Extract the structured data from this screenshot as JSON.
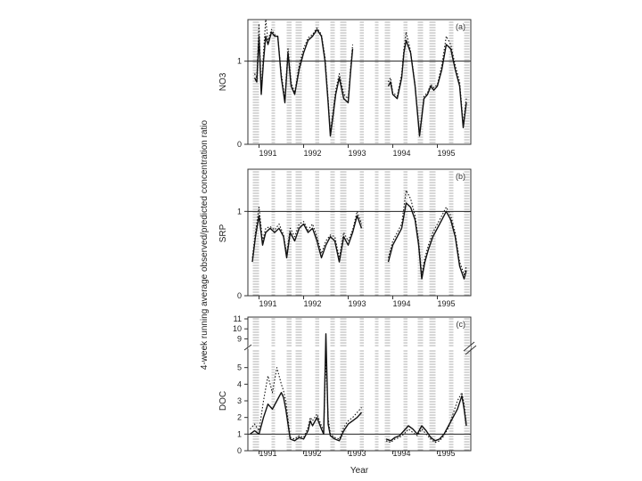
{
  "figure": {
    "ylabel": "4-week running average observed/predicted concentration ratio",
    "xlabel": "Year"
  },
  "chart_data": [
    {
      "type": "line",
      "panel": "(a)",
      "ylabel": "NO3",
      "ylim": [
        0,
        1.5
      ],
      "yticks": [
        {
          "v": 0,
          "label": "0"
        },
        {
          "v": 1,
          "label": "1"
        }
      ],
      "reference_line": 1,
      "years": [
        "1991",
        "1992",
        "1993",
        "1994",
        "1995"
      ],
      "year_x": [
        1991.2,
        1992.2,
        1993.2,
        1994.2,
        1995.2
      ],
      "xlim": [
        1990.75,
        1995.75
      ],
      "shaded_periods": [
        [
          1990.86,
          1991.0
        ],
        [
          1991.28,
          1991.36
        ],
        [
          1991.62,
          1991.73
        ],
        [
          1991.82,
          1991.96
        ],
        [
          1992.26,
          1992.35
        ],
        [
          1992.6,
          1992.7
        ],
        [
          1992.82,
          1992.96
        ],
        [
          1993.26,
          1993.35
        ],
        [
          1993.6,
          1993.68
        ],
        [
          1993.82,
          1993.94
        ],
        [
          1994.24,
          1994.33
        ],
        [
          1994.56,
          1994.68
        ],
        [
          1994.82,
          1994.96
        ],
        [
          1995.26,
          1995.36
        ],
        [
          1995.6,
          1995.72
        ]
      ],
      "series": [
        {
          "style": "solid",
          "x": [
            1990.9,
            1990.95,
            1991.0,
            1991.05,
            1991.1,
            1991.15,
            1991.2,
            1991.28,
            1991.35,
            1991.42,
            1991.5,
            1991.58,
            1991.65,
            1991.72,
            1991.8,
            1991.9,
            1992.0,
            1992.1,
            1992.2,
            1992.3,
            1992.4,
            1992.48,
            1992.55,
            1992.6,
            1992.65,
            1992.72,
            1992.8,
            1992.9,
            1993.0,
            1993.05,
            1993.1,
            null,
            1993.9,
            1993.95,
            1994.0,
            1994.1,
            1994.2,
            1994.25,
            1994.3,
            1994.4,
            1994.5,
            1994.6,
            1994.7,
            1994.78,
            1994.85,
            1994.92,
            1995.0,
            1995.1,
            1995.2,
            1995.3,
            1995.4,
            1995.5,
            1995.58,
            1995.65
          ],
          "y": [
            0.8,
            0.75,
            1.3,
            0.6,
            1.0,
            1.3,
            1.2,
            1.35,
            1.3,
            1.3,
            0.8,
            0.5,
            1.1,
            0.7,
            0.6,
            0.9,
            1.1,
            1.25,
            1.3,
            1.38,
            1.3,
            1.0,
            0.5,
            0.1,
            0.3,
            0.6,
            0.8,
            0.55,
            0.5,
            0.85,
            1.15,
            null,
            0.7,
            0.75,
            0.6,
            0.55,
            0.8,
            1.1,
            1.25,
            1.1,
            0.7,
            0.1,
            0.55,
            0.6,
            0.7,
            0.65,
            0.7,
            0.9,
            1.2,
            1.15,
            0.9,
            0.7,
            0.2,
            0.5
          ]
        },
        {
          "style": "dotted",
          "x": [
            1990.9,
            1990.95,
            1991.0,
            1991.05,
            1991.1,
            1991.15,
            1991.2,
            1991.28,
            1991.35,
            1991.42,
            1991.5,
            1991.58,
            1991.65,
            1991.72,
            1991.8,
            1991.9,
            1992.0,
            1992.1,
            1992.2,
            1992.3,
            1992.4,
            1992.48,
            1992.55,
            1992.6,
            1992.65,
            1992.72,
            1992.8,
            1992.9,
            1993.0,
            1993.05,
            1993.1,
            null,
            1993.9,
            1993.95,
            1994.0,
            1994.1,
            1994.2,
            1994.25,
            1994.3,
            1994.4,
            1994.5,
            1994.6,
            1994.7,
            1994.78,
            1994.85,
            1994.92,
            1995.0,
            1995.1,
            1995.2,
            1995.3,
            1995.4,
            1995.5,
            1995.58,
            1995.65
          ],
          "y": [
            0.85,
            0.8,
            1.45,
            0.65,
            1.1,
            1.5,
            1.25,
            1.38,
            1.32,
            1.3,
            0.85,
            0.55,
            1.15,
            0.75,
            0.62,
            0.95,
            1.15,
            1.28,
            1.32,
            1.4,
            1.32,
            1.05,
            0.55,
            0.15,
            0.35,
            0.65,
            0.85,
            0.6,
            0.55,
            0.9,
            1.2,
            null,
            0.75,
            0.8,
            0.62,
            0.58,
            0.85,
            1.15,
            1.35,
            1.12,
            0.72,
            0.12,
            0.58,
            0.62,
            0.72,
            0.68,
            0.72,
            0.95,
            1.3,
            1.2,
            0.95,
            0.75,
            0.25,
            0.55
          ]
        }
      ]
    },
    {
      "type": "line",
      "panel": "(b)",
      "ylabel": "SRP",
      "ylim": [
        0,
        1.5
      ],
      "yticks": [
        {
          "v": 0,
          "label": "0"
        },
        {
          "v": 1,
          "label": "1"
        }
      ],
      "reference_line": 1,
      "years": [
        "1991",
        "1992",
        "1993",
        "1994",
        "1995"
      ],
      "year_x": [
        1991.2,
        1992.2,
        1993.2,
        1994.2,
        1995.2
      ],
      "xlim": [
        1990.75,
        1995.75
      ],
      "shaded_periods": [
        [
          1990.86,
          1991.0
        ],
        [
          1991.28,
          1991.36
        ],
        [
          1991.62,
          1991.73
        ],
        [
          1991.82,
          1991.96
        ],
        [
          1992.26,
          1992.35
        ],
        [
          1992.6,
          1992.7
        ],
        [
          1992.82,
          1992.96
        ],
        [
          1993.26,
          1993.35
        ],
        [
          1993.6,
          1993.68
        ],
        [
          1993.82,
          1993.94
        ],
        [
          1994.24,
          1994.33
        ],
        [
          1994.56,
          1994.68
        ],
        [
          1994.82,
          1994.96
        ],
        [
          1995.26,
          1995.36
        ],
        [
          1995.6,
          1995.72
        ]
      ],
      "series": [
        {
          "style": "solid",
          "x": [
            1990.85,
            1990.92,
            1991.0,
            1991.08,
            1991.15,
            1991.25,
            1991.35,
            1991.45,
            1991.55,
            1991.62,
            1991.7,
            1991.8,
            1991.9,
            1992.0,
            1992.1,
            1992.2,
            1992.3,
            1992.4,
            1992.5,
            1992.6,
            1992.7,
            1992.8,
            1992.9,
            1993.0,
            1993.1,
            1993.2,
            1993.3,
            null,
            1993.9,
            1994.0,
            1994.1,
            1994.2,
            1994.3,
            1994.4,
            1994.5,
            1994.58,
            1994.65,
            1994.72,
            1994.8,
            1994.9,
            1995.0,
            1995.1,
            1995.2,
            1995.3,
            1995.4,
            1995.5,
            1995.6,
            1995.65
          ],
          "y": [
            0.4,
            0.7,
            0.95,
            0.6,
            0.75,
            0.8,
            0.75,
            0.8,
            0.7,
            0.45,
            0.75,
            0.65,
            0.8,
            0.85,
            0.75,
            0.8,
            0.65,
            0.45,
            0.6,
            0.7,
            0.65,
            0.4,
            0.7,
            0.6,
            0.75,
            0.95,
            0.8,
            null,
            0.4,
            0.6,
            0.7,
            0.8,
            1.1,
            1.05,
            0.9,
            0.6,
            0.2,
            0.4,
            0.55,
            0.7,
            0.8,
            0.9,
            1.0,
            0.9,
            0.7,
            0.35,
            0.2,
            0.3
          ]
        },
        {
          "style": "dotted",
          "x": [
            1990.85,
            1990.92,
            1991.0,
            1991.08,
            1991.15,
            1991.25,
            1991.35,
            1991.45,
            1991.55,
            1991.62,
            1991.7,
            1991.8,
            1991.9,
            1992.0,
            1992.1,
            1992.2,
            1992.3,
            1992.4,
            1992.5,
            1992.6,
            1992.7,
            1992.8,
            1992.9,
            1993.0,
            1993.1,
            1993.2,
            1993.3,
            null,
            1993.9,
            1994.0,
            1994.1,
            1994.2,
            1994.3,
            1994.4,
            1994.5,
            1994.58,
            1994.65,
            1994.72,
            1994.8,
            1994.9,
            1995.0,
            1995.1,
            1995.2,
            1995.3,
            1995.4,
            1995.5,
            1995.6,
            1995.65
          ],
          "y": [
            0.45,
            0.75,
            1.05,
            0.65,
            0.8,
            0.82,
            0.78,
            0.85,
            0.72,
            0.5,
            0.8,
            0.7,
            0.85,
            0.88,
            0.78,
            0.85,
            0.7,
            0.5,
            0.65,
            0.72,
            0.7,
            0.45,
            0.75,
            0.65,
            0.78,
            1.0,
            0.85,
            null,
            0.45,
            0.65,
            0.75,
            0.85,
            1.25,
            1.15,
            0.95,
            0.65,
            0.25,
            0.45,
            0.6,
            0.75,
            0.85,
            0.95,
            1.05,
            0.95,
            0.75,
            0.4,
            0.25,
            0.35
          ]
        }
      ]
    },
    {
      "type": "line",
      "panel": "(c)",
      "ylabel": "DOC",
      "ylim": [
        0,
        6
      ],
      "yticks": [
        {
          "v": 0,
          "label": "0"
        },
        {
          "v": 1,
          "label": "1"
        },
        {
          "v": 2,
          "label": "2"
        },
        {
          "v": 3,
          "label": "3"
        },
        {
          "v": 4,
          "label": "4"
        },
        {
          "v": 5,
          "label": "5"
        }
      ],
      "upper_ylim": [
        8.5,
        11
      ],
      "upper_yticks": [
        {
          "v": 9,
          "label": "9"
        },
        {
          "v": 10,
          "label": "10"
        },
        {
          "v": 11,
          "label": "11"
        }
      ],
      "reference_line": 1,
      "broken_axis": true,
      "years": [
        "1991",
        "1992",
        "1993",
        "1994",
        "1995"
      ],
      "year_x": [
        1991.2,
        1992.2,
        1993.2,
        1994.2,
        1995.2
      ],
      "xlim": [
        1990.75,
        1995.75
      ],
      "shaded_periods": [
        [
          1990.86,
          1991.0
        ],
        [
          1991.28,
          1991.36
        ],
        [
          1991.62,
          1991.73
        ],
        [
          1991.82,
          1991.96
        ],
        [
          1992.26,
          1992.35
        ],
        [
          1992.6,
          1992.7
        ],
        [
          1992.82,
          1992.96
        ],
        [
          1993.26,
          1993.35
        ],
        [
          1993.6,
          1993.68
        ],
        [
          1993.82,
          1993.94
        ],
        [
          1994.24,
          1994.33
        ],
        [
          1994.56,
          1994.68
        ],
        [
          1994.82,
          1994.96
        ],
        [
          1995.26,
          1995.36
        ],
        [
          1995.6,
          1995.72
        ]
      ],
      "series": [
        {
          "style": "solid",
          "x": [
            1990.8,
            1990.9,
            1991.0,
            1991.1,
            1991.2,
            1991.3,
            1991.4,
            1991.5,
            1991.55,
            1991.6,
            1991.7,
            1991.8,
            1991.9,
            1992.0,
            1992.1,
            1992.15,
            1992.2,
            1992.3,
            1992.4,
            1992.45,
            1992.5,
            1992.55,
            1992.6,
            1992.7,
            1992.8,
            1992.9,
            1993.0,
            1993.1,
            1993.2,
            1993.3,
            null,
            1993.85,
            1993.95,
            1994.05,
            1994.15,
            1994.25,
            1994.35,
            1994.45,
            1994.55,
            1994.65,
            1994.75,
            1994.85,
            1994.95,
            1995.05,
            1995.15,
            1995.25,
            1995.35,
            1995.45,
            1995.55,
            1995.6,
            1995.65
          ],
          "y": [
            1.0,
            1.2,
            1.0,
            2.0,
            2.8,
            2.5,
            3.0,
            3.5,
            3.2,
            2.5,
            0.7,
            0.6,
            0.8,
            0.7,
            1.2,
            1.8,
            1.5,
            2.0,
            1.3,
            1.0,
            9.5,
            1.6,
            0.9,
            0.7,
            0.6,
            1.2,
            1.6,
            1.8,
            2.0,
            2.3,
            null,
            0.7,
            0.6,
            0.8,
            0.9,
            1.2,
            1.5,
            1.3,
            1.0,
            1.5,
            1.2,
            0.8,
            0.6,
            0.7,
            1.0,
            1.5,
            2.0,
            2.5,
            3.3,
            2.5,
            1.5
          ]
        },
        {
          "style": "dotted",
          "x": [
            1990.8,
            1990.9,
            1991.0,
            1991.1,
            1991.2,
            1991.3,
            1991.4,
            1991.5,
            1991.55,
            1991.6,
            1991.7,
            1991.8,
            1991.9,
            1992.0,
            1992.1,
            1992.15,
            1992.2,
            1992.3,
            1992.4,
            1992.45,
            1992.5,
            1992.55,
            1992.6,
            1992.7,
            1992.8,
            1992.9,
            1993.0,
            1993.1,
            1993.2,
            1993.3,
            null,
            1993.85,
            1993.95,
            1994.05,
            1994.15,
            1994.25,
            1994.35,
            1994.45,
            1994.55,
            1994.65,
            1994.75,
            1994.85,
            1994.95,
            1995.05,
            1995.15,
            1995.25,
            1995.35,
            1995.45,
            1995.55,
            1995.6,
            1995.65
          ],
          "y": [
            1.3,
            1.6,
            1.2,
            3.0,
            4.5,
            3.5,
            5.0,
            4.0,
            3.6,
            3.0,
            0.8,
            0.7,
            0.9,
            0.8,
            1.4,
            2.0,
            1.8,
            2.2,
            1.5,
            1.2,
            5.5,
            2.0,
            1.0,
            0.8,
            0.7,
            1.4,
            1.8,
            2.0,
            2.3,
            2.6,
            null,
            0.6,
            0.5,
            0.7,
            0.8,
            1.0,
            1.3,
            1.1,
            0.9,
            1.3,
            1.0,
            0.7,
            0.5,
            0.6,
            0.9,
            1.4,
            2.2,
            3.0,
            3.5,
            2.8,
            1.6
          ]
        }
      ]
    }
  ]
}
